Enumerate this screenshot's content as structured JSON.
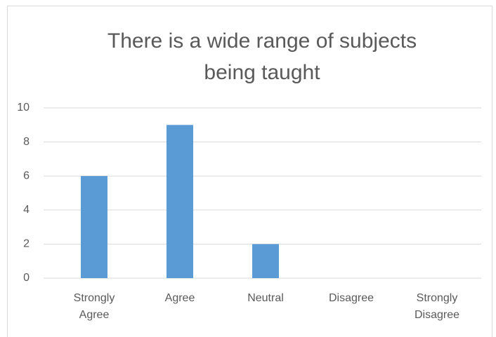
{
  "chart_data": {
    "type": "bar",
    "title": "There is a wide range of subjects being taught",
    "categories": [
      "Strongly Agree",
      "Agree",
      "Neutral",
      "Disagree",
      "Strongly Disagree"
    ],
    "values": [
      6,
      9,
      2,
      0,
      0
    ],
    "color": "#5b9bd5",
    "ylim": [
      0,
      10
    ],
    "yticks": [
      0,
      2,
      4,
      6,
      8,
      10
    ],
    "grid": true
  }
}
